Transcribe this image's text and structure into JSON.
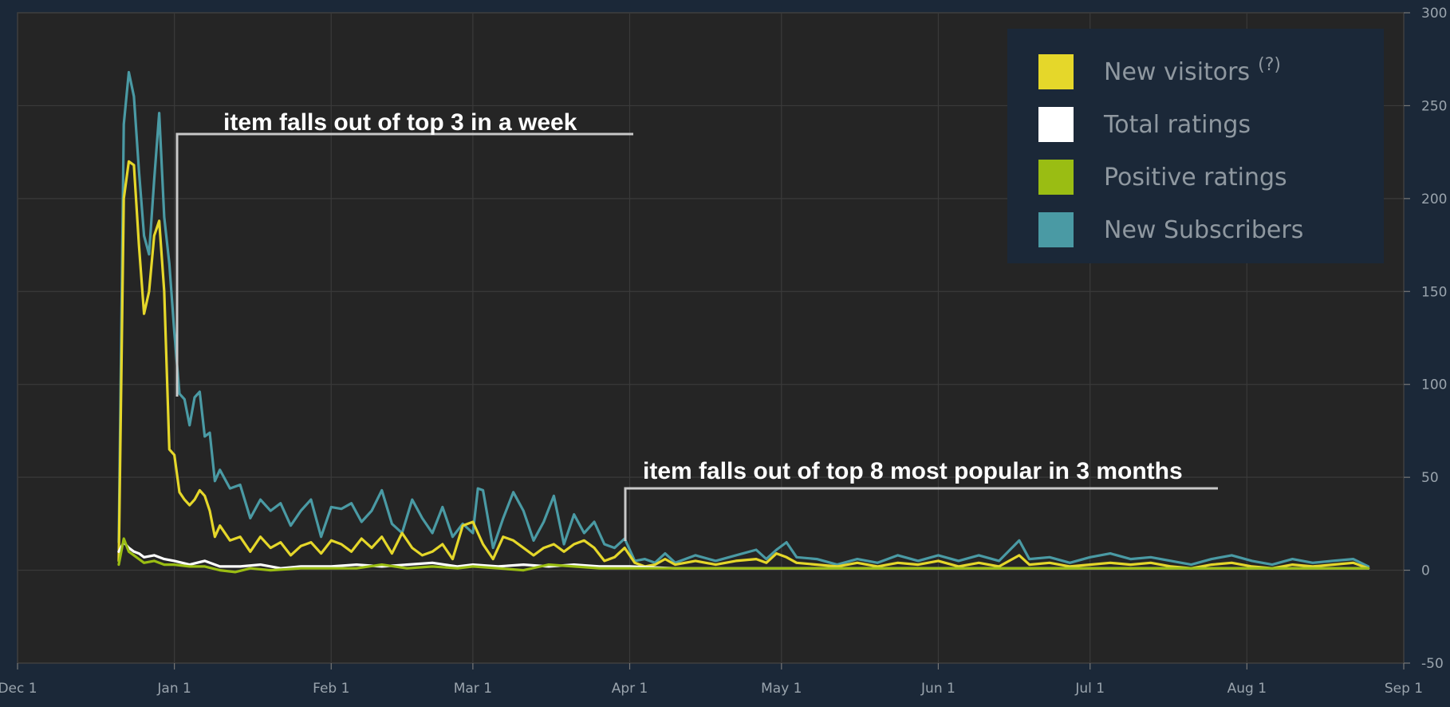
{
  "chart_data": {
    "type": "line",
    "title": "",
    "xlabel": "",
    "ylabel": "",
    "x_ticks": [
      "Dec 1",
      "Jan 1",
      "Feb 1",
      "Mar 1",
      "Apr 1",
      "May 1",
      "Jun 1",
      "Jul 1",
      "Aug 1",
      "Sep 1"
    ],
    "y_ticks": [
      "-50",
      "0",
      "50",
      "100",
      "150",
      "200",
      "250",
      "300"
    ],
    "xlim": [
      "Dec 1",
      "Sep 1"
    ],
    "ylim": [
      -50,
      300
    ],
    "grid": true,
    "legend_position": "top-right",
    "legend": [
      {
        "label": "New visitors",
        "superscript": "(?)",
        "color": "#e5d72a"
      },
      {
        "label": "Total ratings",
        "color": "#ffffff"
      },
      {
        "label": "Positive ratings",
        "color": "#9abd13"
      },
      {
        "label": "New Subscribers",
        "color": "#4a9aa4"
      }
    ],
    "annotations": [
      {
        "text": "item falls out of top 3 in a week"
      },
      {
        "text": "item falls out of top 8 most popular in 3 months"
      }
    ],
    "series": [
      {
        "name": "New Subscribers",
        "color": "#4a9aa4",
        "points": [
          [
            "Dec 21",
            15
          ],
          [
            "Dec 22",
            240
          ],
          [
            "Dec 23",
            268
          ],
          [
            "Dec 24",
            255
          ],
          [
            "Dec 25",
            215
          ],
          [
            "Dec 26",
            180
          ],
          [
            "Dec 27",
            170
          ],
          [
            "Dec 28",
            210
          ],
          [
            "Dec 29",
            246
          ],
          [
            "Dec 30",
            190
          ],
          [
            "Dec 31",
            165
          ],
          [
            "Jan 1",
            128
          ],
          [
            "Jan 2",
            95
          ],
          [
            "Jan 3",
            92
          ],
          [
            "Jan 4",
            78
          ],
          [
            "Jan 5",
            93
          ],
          [
            "Jan 6",
            96
          ],
          [
            "Jan 7",
            72
          ],
          [
            "Jan 8",
            74
          ],
          [
            "Jan 9",
            48
          ],
          [
            "Jan 10",
            54
          ],
          [
            "Jan 12",
            44
          ],
          [
            "Jan 14",
            46
          ],
          [
            "Jan 16",
            28
          ],
          [
            "Jan 18",
            38
          ],
          [
            "Jan 20",
            32
          ],
          [
            "Jan 22",
            36
          ],
          [
            "Jan 24",
            24
          ],
          [
            "Jan 26",
            32
          ],
          [
            "Jan 28",
            38
          ],
          [
            "Jan 30",
            18
          ],
          [
            "Feb 1",
            34
          ],
          [
            "Feb 3",
            33
          ],
          [
            "Feb 5",
            36
          ],
          [
            "Feb 7",
            26
          ],
          [
            "Feb 9",
            32
          ],
          [
            "Feb 11",
            43
          ],
          [
            "Feb 13",
            25
          ],
          [
            "Feb 15",
            20
          ],
          [
            "Feb 17",
            38
          ],
          [
            "Feb 19",
            28
          ],
          [
            "Feb 21",
            20
          ],
          [
            "Feb 23",
            34
          ],
          [
            "Feb 25",
            18
          ],
          [
            "Feb 27",
            25
          ],
          [
            "Mar 1",
            20
          ],
          [
            "Mar 2",
            44
          ],
          [
            "Mar 3",
            43
          ],
          [
            "Mar 5",
            12
          ],
          [
            "Mar 7",
            28
          ],
          [
            "Mar 9",
            42
          ],
          [
            "Mar 11",
            32
          ],
          [
            "Mar 13",
            16
          ],
          [
            "Mar 15",
            26
          ],
          [
            "Mar 17",
            40
          ],
          [
            "Mar 19",
            14
          ],
          [
            "Mar 21",
            30
          ],
          [
            "Mar 23",
            20
          ],
          [
            "Mar 25",
            26
          ],
          [
            "Mar 27",
            14
          ],
          [
            "Mar 29",
            12
          ],
          [
            "Mar 31",
            17
          ],
          [
            "Apr 2",
            5
          ],
          [
            "Apr 4",
            6
          ],
          [
            "Apr 6",
            4
          ],
          [
            "Apr 8",
            9
          ],
          [
            "Apr 10",
            4
          ],
          [
            "Apr 14",
            8
          ],
          [
            "Apr 18",
            5
          ],
          [
            "Apr 22",
            8
          ],
          [
            "Apr 26",
            11
          ],
          [
            "Apr 28",
            6
          ],
          [
            "Apr 30",
            11
          ],
          [
            "May 2",
            15
          ],
          [
            "May 4",
            7
          ],
          [
            "May 8",
            6
          ],
          [
            "May 12",
            3
          ],
          [
            "May 16",
            6
          ],
          [
            "May 20",
            4
          ],
          [
            "May 24",
            8
          ],
          [
            "May 28",
            5
          ],
          [
            "Jun 1",
            8
          ],
          [
            "Jun 5",
            5
          ],
          [
            "Jun 9",
            8
          ],
          [
            "Jun 13",
            5
          ],
          [
            "Jun 17",
            16
          ],
          [
            "Jun 19",
            6
          ],
          [
            "Jun 23",
            7
          ],
          [
            "Jun 27",
            4
          ],
          [
            "Jul 1",
            7
          ],
          [
            "Jul 5",
            9
          ],
          [
            "Jul 9",
            6
          ],
          [
            "Jul 13",
            7
          ],
          [
            "Jul 17",
            5
          ],
          [
            "Jul 21",
            3
          ],
          [
            "Jul 25",
            6
          ],
          [
            "Jul 29",
            8
          ],
          [
            "Aug 2",
            5
          ],
          [
            "Aug 6",
            3
          ],
          [
            "Aug 10",
            6
          ],
          [
            "Aug 14",
            4
          ],
          [
            "Aug 18",
            5
          ],
          [
            "Aug 22",
            6
          ],
          [
            "Aug 25",
            2
          ]
        ]
      },
      {
        "name": "New visitors",
        "color": "#e5d72a",
        "points": [
          [
            "Dec 21",
            5
          ],
          [
            "Dec 22",
            200
          ],
          [
            "Dec 23",
            220
          ],
          [
            "Dec 24",
            218
          ],
          [
            "Dec 25",
            175
          ],
          [
            "Dec 26",
            138
          ],
          [
            "Dec 27",
            150
          ],
          [
            "Dec 28",
            180
          ],
          [
            "Dec 29",
            188
          ],
          [
            "Dec 30",
            150
          ],
          [
            "Dec 31",
            65
          ],
          [
            "Jan 1",
            62
          ],
          [
            "Jan 2",
            42
          ],
          [
            "Jan 3",
            38
          ],
          [
            "Jan 4",
            35
          ],
          [
            "Jan 5",
            38
          ],
          [
            "Jan 6",
            43
          ],
          [
            "Jan 7",
            40
          ],
          [
            "Jan 8",
            32
          ],
          [
            "Jan 9",
            18
          ],
          [
            "Jan 10",
            24
          ],
          [
            "Jan 12",
            16
          ],
          [
            "Jan 14",
            18
          ],
          [
            "Jan 16",
            10
          ],
          [
            "Jan 18",
            18
          ],
          [
            "Jan 20",
            12
          ],
          [
            "Jan 22",
            15
          ],
          [
            "Jan 24",
            8
          ],
          [
            "Jan 26",
            13
          ],
          [
            "Jan 28",
            15
          ],
          [
            "Jan 30",
            9
          ],
          [
            "Feb 1",
            16
          ],
          [
            "Feb 3",
            14
          ],
          [
            "Feb 5",
            10
          ],
          [
            "Feb 7",
            17
          ],
          [
            "Feb 9",
            12
          ],
          [
            "Feb 11",
            18
          ],
          [
            "Feb 13",
            9
          ],
          [
            "Feb 15",
            20
          ],
          [
            "Feb 17",
            12
          ],
          [
            "Feb 19",
            8
          ],
          [
            "Feb 21",
            10
          ],
          [
            "Feb 23",
            14
          ],
          [
            "Feb 25",
            6
          ],
          [
            "Feb 27",
            24
          ],
          [
            "Mar 1",
            26
          ],
          [
            "Mar 3",
            14
          ],
          [
            "Mar 5",
            6
          ],
          [
            "Mar 7",
            18
          ],
          [
            "Mar 9",
            16
          ],
          [
            "Mar 11",
            12
          ],
          [
            "Mar 13",
            8
          ],
          [
            "Mar 15",
            12
          ],
          [
            "Mar 17",
            14
          ],
          [
            "Mar 19",
            10
          ],
          [
            "Mar 21",
            14
          ],
          [
            "Mar 23",
            16
          ],
          [
            "Mar 25",
            12
          ],
          [
            "Mar 27",
            5
          ],
          [
            "Mar 29",
            7
          ],
          [
            "Mar 31",
            12
          ],
          [
            "Apr 2",
            4
          ],
          [
            "Apr 4",
            2
          ],
          [
            "Apr 6",
            3
          ],
          [
            "Apr 8",
            6
          ],
          [
            "Apr 10",
            3
          ],
          [
            "Apr 14",
            5
          ],
          [
            "Apr 18",
            3
          ],
          [
            "Apr 22",
            5
          ],
          [
            "Apr 26",
            6
          ],
          [
            "Apr 28",
            4
          ],
          [
            "Apr 30",
            9
          ],
          [
            "May 2",
            7
          ],
          [
            "May 4",
            4
          ],
          [
            "May 8",
            3
          ],
          [
            "May 12",
            2
          ],
          [
            "May 16",
            4
          ],
          [
            "May 20",
            2
          ],
          [
            "May 24",
            4
          ],
          [
            "May 28",
            3
          ],
          [
            "Jun 1",
            5
          ],
          [
            "Jun 5",
            2
          ],
          [
            "Jun 9",
            4
          ],
          [
            "Jun 13",
            2
          ],
          [
            "Jun 17",
            8
          ],
          [
            "Jun 19",
            3
          ],
          [
            "Jun 23",
            4
          ],
          [
            "Jun 27",
            2
          ],
          [
            "Jul 1",
            3
          ],
          [
            "Jul 5",
            4
          ],
          [
            "Jul 9",
            3
          ],
          [
            "Jul 13",
            4
          ],
          [
            "Jul 17",
            2
          ],
          [
            "Jul 21",
            1
          ],
          [
            "Jul 25",
            3
          ],
          [
            "Jul 29",
            4
          ],
          [
            "Aug 2",
            2
          ],
          [
            "Aug 6",
            1
          ],
          [
            "Aug 10",
            3
          ],
          [
            "Aug 14",
            2
          ],
          [
            "Aug 18",
            3
          ],
          [
            "Aug 22",
            4
          ],
          [
            "Aug 25",
            1
          ]
        ]
      },
      {
        "name": "Total ratings",
        "color": "#ffffff",
        "points": [
          [
            "Dec 21",
            10
          ],
          [
            "Dec 22",
            15
          ],
          [
            "Dec 23",
            12
          ],
          [
            "Dec 24",
            10
          ],
          [
            "Dec 25",
            9
          ],
          [
            "Dec 26",
            7
          ],
          [
            "Dec 28",
            8
          ],
          [
            "Dec 30",
            6
          ],
          [
            "Jan 1",
            5
          ],
          [
            "Jan 4",
            3
          ],
          [
            "Jan 7",
            5
          ],
          [
            "Jan 10",
            2
          ],
          [
            "Jan 14",
            2
          ],
          [
            "Jan 18",
            3
          ],
          [
            "Jan 22",
            1
          ],
          [
            "Jan 26",
            2
          ],
          [
            "Feb 1",
            2
          ],
          [
            "Feb 6",
            3
          ],
          [
            "Feb 11",
            2
          ],
          [
            "Feb 16",
            3
          ],
          [
            "Feb 21",
            4
          ],
          [
            "Feb 26",
            2
          ],
          [
            "Mar 1",
            3
          ],
          [
            "Mar 6",
            2
          ],
          [
            "Mar 11",
            3
          ],
          [
            "Mar 16",
            2
          ],
          [
            "Mar 21",
            3
          ],
          [
            "Mar 26",
            2
          ],
          [
            "Apr 1",
            2
          ],
          [
            "Apr 10",
            1
          ],
          [
            "Apr 20",
            1
          ],
          [
            "May 1",
            1
          ],
          [
            "May 15",
            1
          ],
          [
            "Jun 1",
            1
          ],
          [
            "Jun 15",
            1
          ],
          [
            "Jul 1",
            1
          ],
          [
            "Jul 15",
            1
          ],
          [
            "Aug 1",
            1
          ],
          [
            "Aug 15",
            1
          ],
          [
            "Aug 25",
            1
          ]
        ]
      },
      {
        "name": "Positive ratings",
        "color": "#9abd13",
        "points": [
          [
            "Dec 21",
            3
          ],
          [
            "Dec 22",
            17
          ],
          [
            "Dec 23",
            10
          ],
          [
            "Dec 24",
            8
          ],
          [
            "Dec 25",
            6
          ],
          [
            "Dec 26",
            4
          ],
          [
            "Dec 28",
            5
          ],
          [
            "Dec 30",
            3
          ],
          [
            "Jan 1",
            3
          ],
          [
            "Jan 4",
            2
          ],
          [
            "Jan 7",
            2
          ],
          [
            "Jan 10",
            0
          ],
          [
            "Jan 13",
            -1
          ],
          [
            "Jan 16",
            1
          ],
          [
            "Jan 20",
            0
          ],
          [
            "Jan 26",
            1
          ],
          [
            "Feb 1",
            1
          ],
          [
            "Feb 6",
            1
          ],
          [
            "Feb 11",
            3
          ],
          [
            "Feb 16",
            1
          ],
          [
            "Feb 21",
            2
          ],
          [
            "Feb 26",
            1
          ],
          [
            "Mar 1",
            2
          ],
          [
            "Mar 6",
            1
          ],
          [
            "Mar 11",
            0
          ],
          [
            "Mar 16",
            3
          ],
          [
            "Mar 21",
            2
          ],
          [
            "Mar 26",
            1
          ],
          [
            "Apr 1",
            1
          ],
          [
            "Apr 10",
            1
          ],
          [
            "Apr 20",
            1
          ],
          [
            "May 1",
            1
          ],
          [
            "May 15",
            1
          ],
          [
            "Jun 1",
            1
          ],
          [
            "Jun 15",
            1
          ],
          [
            "Jul 1",
            1
          ],
          [
            "Jul 15",
            1
          ],
          [
            "Aug 1",
            1
          ],
          [
            "Aug 15",
            1
          ],
          [
            "Aug 25",
            1
          ]
        ]
      }
    ]
  }
}
